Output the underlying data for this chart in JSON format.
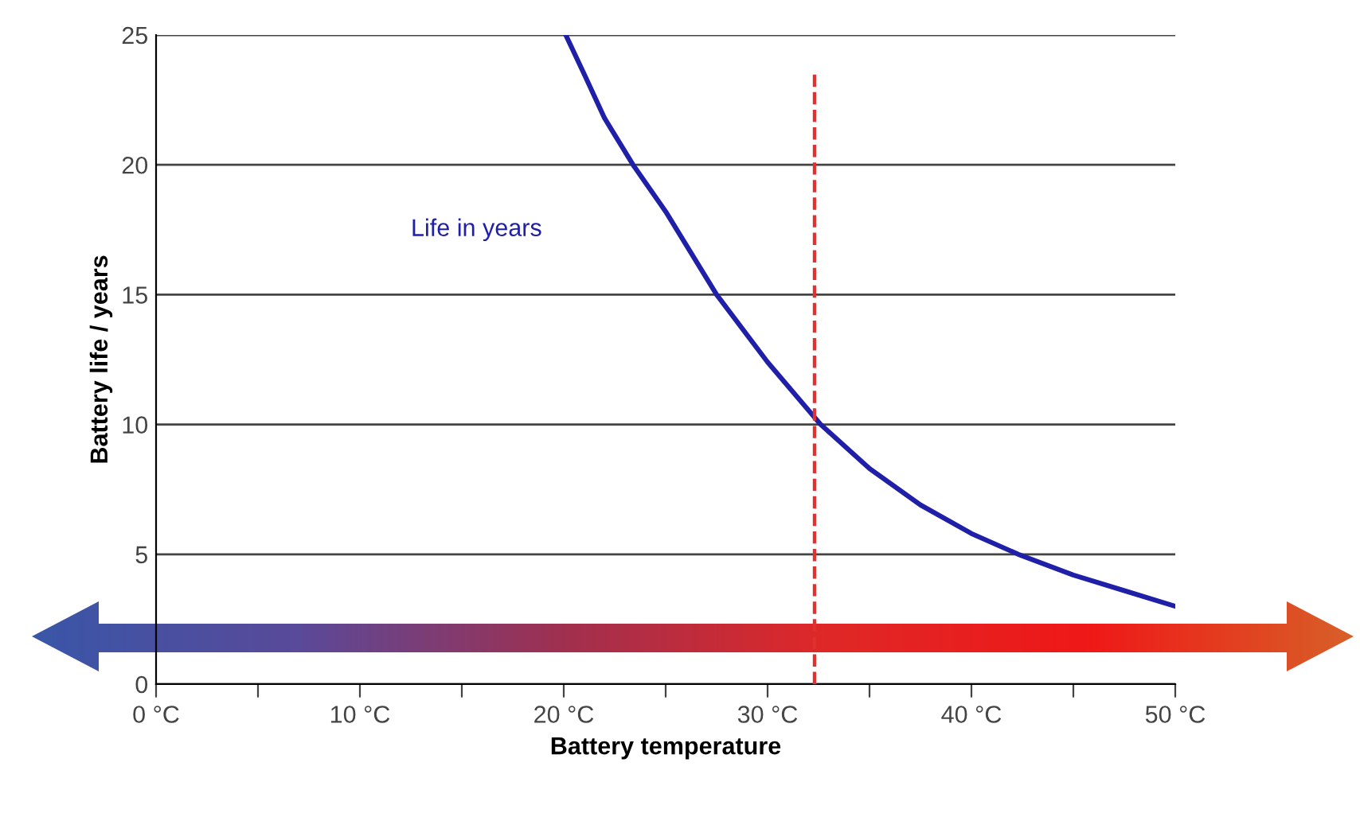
{
  "chart_data": {
    "type": "line",
    "xlabel": "Battery temperature",
    "ylabel": "Battery life / years",
    "x": [
      20.1,
      21,
      22,
      23.4,
      25,
      27.5,
      30,
      32.6,
      35,
      37.5,
      40,
      42.3,
      45,
      47.5,
      50
    ],
    "series": [
      {
        "name": "Life in years",
        "color": "#1f1fa8",
        "values": [
          25,
          23.5,
          21.8,
          20,
          18.2,
          15,
          12.4,
          10,
          8.3,
          6.9,
          5.8,
          5,
          4.2,
          3.6,
          3.0
        ]
      }
    ],
    "xlim": [
      0,
      50
    ],
    "ylim": [
      0,
      25
    ],
    "xticks": [
      {
        "value": 0,
        "label": "0 °C"
      },
      {
        "value": 5,
        "label": null
      },
      {
        "value": 10,
        "label": "10 °C"
      },
      {
        "value": 15,
        "label": null
      },
      {
        "value": 20,
        "label": "20 °C"
      },
      {
        "value": 25,
        "label": null
      },
      {
        "value": 30,
        "label": "30 °C"
      },
      {
        "value": 35,
        "label": null
      },
      {
        "value": 40,
        "label": "40 °C"
      },
      {
        "value": 45,
        "label": null
      },
      {
        "value": 50,
        "label": "50 °C"
      }
    ],
    "yticks": [
      0,
      5,
      10,
      15,
      20,
      25
    ],
    "ref_lines": [
      {
        "axis": "x",
        "value": 32.3,
        "label": null,
        "color": "#e03030",
        "line_style": "dashed"
      }
    ],
    "grid": "y",
    "legend": false,
    "marker": "none",
    "line_style": "solid"
  }
}
